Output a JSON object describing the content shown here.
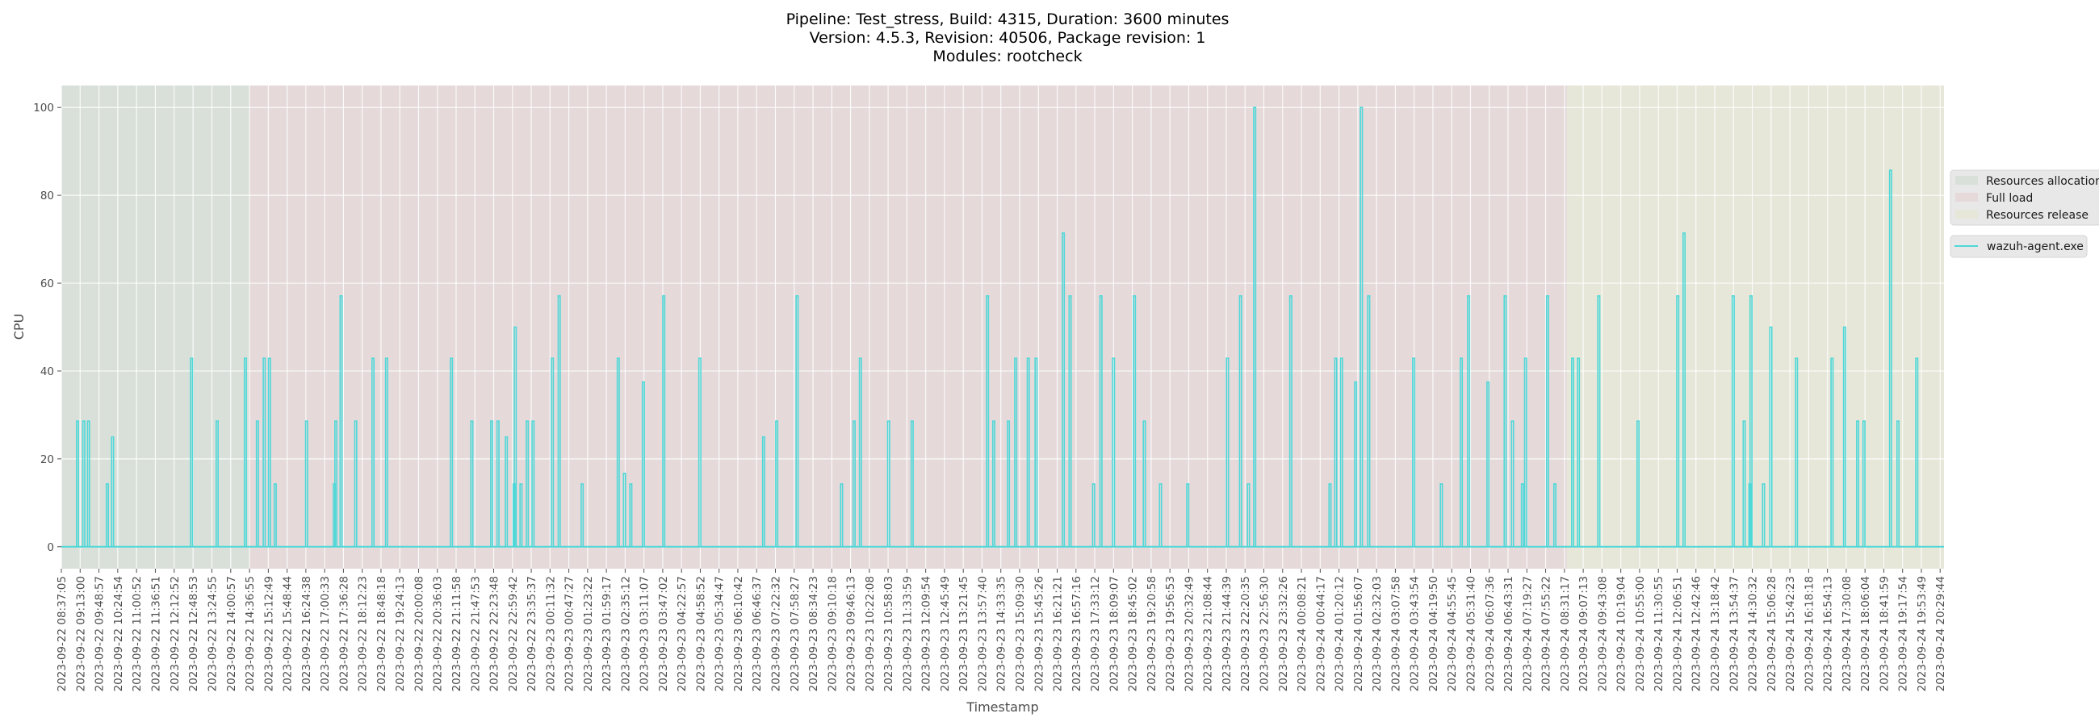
{
  "chart_data": {
    "type": "line",
    "title_lines": [
      "Pipeline: Test_stress, Build: 4315, Duration: 3600 minutes",
      "Version: 4.5.3, Revision: 40506, Package revision: 1",
      "Modules: rootcheck"
    ],
    "xlabel": "Timestamp",
    "ylabel": "CPU",
    "xlim": [
      "2023-09-22 08:37:05",
      "2023-09-24 20:37:05"
    ],
    "ylim": [
      -5,
      105
    ],
    "yticks": [
      0,
      20,
      40,
      60,
      80,
      100
    ],
    "grid": true,
    "legend_placement": "right, outside plot",
    "xticks": [
      "2023-09-22 08:37:05",
      "2023-09-22 09:13:00",
      "2023-09-22 09:48:57",
      "2023-09-22 10:24:54",
      "2023-09-22 11:00:52",
      "2023-09-22 11:36:51",
      "2023-09-22 12:12:52",
      "2023-09-22 12:48:53",
      "2023-09-22 13:24:55",
      "2023-09-22 14:00:57",
      "2023-09-22 14:36:55",
      "2023-09-22 15:12:49",
      "2023-09-22 15:48:44",
      "2023-09-22 16:24:38",
      "2023-09-22 17:00:33",
      "2023-09-22 17:36:28",
      "2023-09-22 18:12:23",
      "2023-09-22 18:48:18",
      "2023-09-22 19:24:13",
      "2023-09-22 20:00:08",
      "2023-09-22 20:36:03",
      "2023-09-22 21:11:58",
      "2023-09-22 21:47:53",
      "2023-09-22 22:23:48",
      "2023-09-22 22:59:42",
      "2023-09-22 23:35:37",
      "2023-09-23 00:11:32",
      "2023-09-23 00:47:27",
      "2023-09-23 01:23:22",
      "2023-09-23 01:59:17",
      "2023-09-23 02:35:12",
      "2023-09-23 03:11:07",
      "2023-09-23 03:47:02",
      "2023-09-23 04:22:57",
      "2023-09-23 04:58:52",
      "2023-09-23 05:34:47",
      "2023-09-23 06:10:42",
      "2023-09-23 06:46:37",
      "2023-09-23 07:22:32",
      "2023-09-23 07:58:27",
      "2023-09-23 08:34:23",
      "2023-09-23 09:10:18",
      "2023-09-23 09:46:13",
      "2023-09-23 10:22:08",
      "2023-09-23 10:58:03",
      "2023-09-23 11:33:59",
      "2023-09-23 12:09:54",
      "2023-09-23 12:45:49",
      "2023-09-23 13:21:45",
      "2023-09-23 13:57:40",
      "2023-09-23 14:33:35",
      "2023-09-23 15:09:30",
      "2023-09-23 15:45:26",
      "2023-09-23 16:21:21",
      "2023-09-23 16:57:16",
      "2023-09-23 17:33:12",
      "2023-09-23 18:09:07",
      "2023-09-23 18:45:02",
      "2023-09-23 19:20:58",
      "2023-09-23 19:56:53",
      "2023-09-23 20:32:49",
      "2023-09-23 21:08:44",
      "2023-09-23 21:44:39",
      "2023-09-23 22:20:35",
      "2023-09-23 22:56:30",
      "2023-09-23 23:32:26",
      "2023-09-24 00:08:21",
      "2023-09-24 00:44:17",
      "2023-09-24 01:20:12",
      "2023-09-24 01:56:07",
      "2023-09-24 02:32:03",
      "2023-09-24 03:07:58",
      "2023-09-24 03:43:54",
      "2023-09-24 04:19:50",
      "2023-09-24 04:55:45",
      "2023-09-24 05:31:40",
      "2023-09-24 06:07:36",
      "2023-09-24 06:43:31",
      "2023-09-24 07:19:27",
      "2023-09-24 07:55:22",
      "2023-09-24 08:31:17",
      "2023-09-24 09:07:13",
      "2023-09-24 09:43:08",
      "2023-09-24 10:19:04",
      "2023-09-24 10:55:00",
      "2023-09-24 11:30:55",
      "2023-09-24 12:06:51",
      "2023-09-24 12:42:46",
      "2023-09-24 13:18:42",
      "2023-09-24 13:54:37",
      "2023-09-24 14:30:32",
      "2023-09-24 15:06:28",
      "2023-09-24 15:42:23",
      "2023-09-24 16:18:18",
      "2023-09-24 16:54:13",
      "2023-09-24 17:30:08",
      "2023-09-24 18:06:04",
      "2023-09-24 18:41:59",
      "2023-09-24 19:17:54",
      "2023-09-24 19:53:49",
      "2023-09-24 20:29:44"
    ],
    "regions": [
      {
        "name": "Resources allocation",
        "start": "2023-09-22 08:37:05",
        "end": "2023-09-22 14:37:00",
        "color": "#d9e0d9"
      },
      {
        "name": "Full load",
        "start": "2023-09-22 14:37:00",
        "end": "2023-09-24 08:36:00",
        "color": "#e5d9da"
      },
      {
        "name": "Resources release",
        "start": "2023-09-24 08:36:00",
        "end": "2023-09-24 20:37:05",
        "color": "#e6e7d9"
      }
    ],
    "series": [
      {
        "name": "wazuh-agent.exe",
        "color": "#4fd8d8",
        "baseline": 0,
        "x": [
          "2023-09-22 09:08",
          "2023-09-22 09:20",
          "2023-09-22 09:29",
          "2023-09-22 10:05",
          "2023-09-22 10:15",
          "2023-09-22 12:46",
          "2023-09-22 13:35",
          "2023-09-22 14:29",
          "2023-09-22 14:52",
          "2023-09-22 15:05",
          "2023-09-22 15:15",
          "2023-09-22 15:26",
          "2023-09-22 16:26",
          "2023-09-22 17:19",
          "2023-09-22 17:22",
          "2023-09-22 17:32",
          "2023-09-22 18:00",
          "2023-09-22 18:33",
          "2023-09-22 18:59",
          "2023-09-22 21:03",
          "2023-09-22 21:42",
          "2023-09-22 22:20",
          "2023-09-22 22:32",
          "2023-09-22 22:48",
          "2023-09-22 23:03",
          "2023-09-22 23:05",
          "2023-09-22 23:16",
          "2023-09-22 23:28",
          "2023-09-22 23:39",
          "2023-09-23 00:16",
          "2023-09-23 00:29",
          "2023-09-23 01:13",
          "2023-09-23 02:22",
          "2023-09-23 02:34",
          "2023-09-23 02:46",
          "2023-09-23 03:10",
          "2023-09-23 03:49",
          "2023-09-23 04:58",
          "2023-09-23 07:00",
          "2023-09-23 07:25",
          "2023-09-23 08:04",
          "2023-09-23 09:29",
          "2023-09-23 09:53",
          "2023-09-23 10:05",
          "2023-09-23 10:59",
          "2023-09-23 11:44",
          "2023-09-23 14:08",
          "2023-09-23 14:20",
          "2023-09-23 14:48",
          "2023-09-23 15:02",
          "2023-09-23 15:26",
          "2023-09-23 15:41",
          "2023-09-23 16:33",
          "2023-09-23 16:46",
          "2023-09-23 17:31",
          "2023-09-23 17:45",
          "2023-09-23 18:09",
          "2023-09-23 18:49",
          "2023-09-23 19:08",
          "2023-09-23 19:39",
          "2023-09-23 20:31",
          "2023-09-23 21:47",
          "2023-09-23 22:12",
          "2023-09-23 22:27",
          "2023-09-23 22:39",
          "2023-09-23 23:48",
          "2023-09-24 01:03",
          "2023-09-24 01:14",
          "2023-09-24 01:25",
          "2023-09-24 01:52",
          "2023-09-24 02:03",
          "2023-09-24 02:17",
          "2023-09-24 03:43",
          "2023-09-24 04:36",
          "2023-09-24 05:14",
          "2023-09-24 05:28",
          "2023-09-24 06:05",
          "2023-09-24 06:38",
          "2023-09-24 06:52",
          "2023-09-24 07:11",
          "2023-09-24 07:17",
          "2023-09-24 07:59",
          "2023-09-24 08:13",
          "2023-09-24 08:47",
          "2023-09-24 08:58",
          "2023-09-24 09:37",
          "2023-09-24 10:52",
          "2023-09-24 12:08",
          "2023-09-24 12:20",
          "2023-09-24 13:54",
          "2023-09-24 14:15",
          "2023-09-24 14:26",
          "2023-09-24 14:28",
          "2023-09-24 14:52",
          "2023-09-24 15:06",
          "2023-09-24 15:55",
          "2023-09-24 17:03",
          "2023-09-24 17:27",
          "2023-09-24 17:52",
          "2023-09-24 18:04",
          "2023-09-24 18:55",
          "2023-09-24 19:09",
          "2023-09-24 19:45"
        ],
        "y": [
          28.6,
          28.6,
          28.6,
          14.3,
          25,
          42.9,
          28.6,
          42.9,
          28.6,
          42.9,
          42.9,
          14.3,
          28.6,
          14.3,
          28.6,
          57.1,
          28.6,
          42.9,
          42.9,
          42.9,
          28.6,
          28.6,
          28.6,
          25,
          14.3,
          50,
          14.3,
          28.6,
          28.6,
          42.9,
          57.1,
          14.3,
          42.9,
          16.7,
          14.3,
          37.5,
          57.1,
          42.9,
          25,
          28.6,
          57.1,
          14.3,
          28.6,
          42.9,
          28.6,
          28.6,
          57.1,
          28.6,
          28.6,
          42.9,
          42.9,
          42.9,
          71.4,
          57.1,
          14.3,
          57.1,
          42.9,
          57.1,
          28.6,
          14.3,
          14.3,
          42.9,
          57.1,
          14.3,
          100,
          57.1,
          14.3,
          42.9,
          42.9,
          37.5,
          100,
          57.1,
          42.9,
          14.3,
          42.9,
          57.1,
          37.5,
          57.1,
          28.6,
          14.3,
          42.9,
          57.1,
          14.3,
          42.9,
          42.9,
          57.1,
          28.6,
          57.1,
          71.4,
          57.1,
          28.6,
          14.3,
          57.1,
          14.3,
          50,
          42.9,
          42.9,
          50,
          28.6,
          28.6,
          85.7,
          28.6,
          42.9
        ]
      }
    ]
  }
}
